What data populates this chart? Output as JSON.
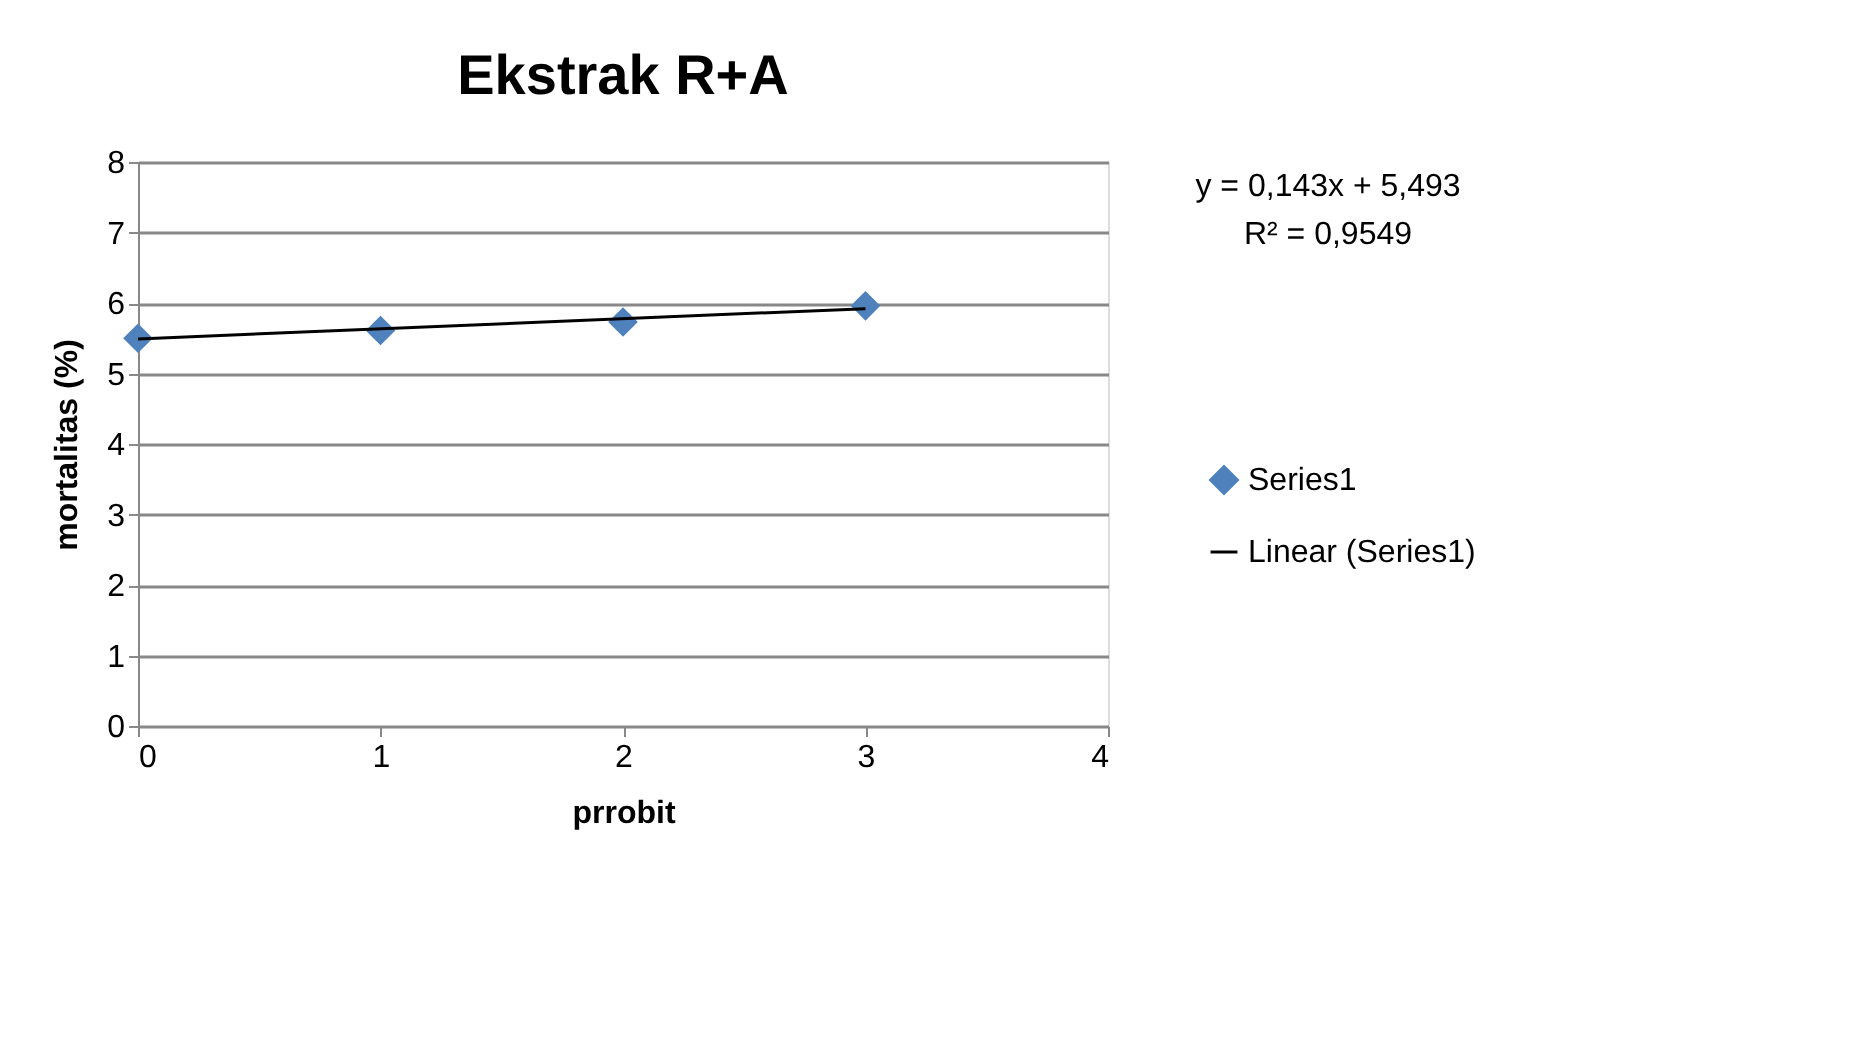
{
  "chart_data": {
    "type": "scatter",
    "title": "Ekstrak R+A",
    "xlabel": "prrobit",
    "ylabel": "mortalitas (%)",
    "xlim": [
      0,
      4
    ],
    "xticks": [
      0,
      1,
      2,
      3,
      4
    ],
    "ylim": [
      0,
      8
    ],
    "yticks": [
      0,
      1,
      2,
      3,
      4,
      5,
      6,
      7,
      8
    ],
    "grid": "y",
    "legend": "right",
    "series": [
      {
        "name": "Series1",
        "marker": "diamond",
        "color": "#4f81bd",
        "x": [
          0,
          1,
          2,
          3
        ],
        "values": [
          5.5,
          5.61,
          5.73,
          5.96
        ]
      },
      {
        "name": "Linear (Series1)",
        "type": "line",
        "line_style": "solid",
        "color": "#000000",
        "x": [
          0,
          3
        ],
        "values": [
          5.49,
          5.92
        ]
      }
    ],
    "annotations": [
      "y = 0,143x + 5,493",
      "R² = 0,9549"
    ]
  }
}
